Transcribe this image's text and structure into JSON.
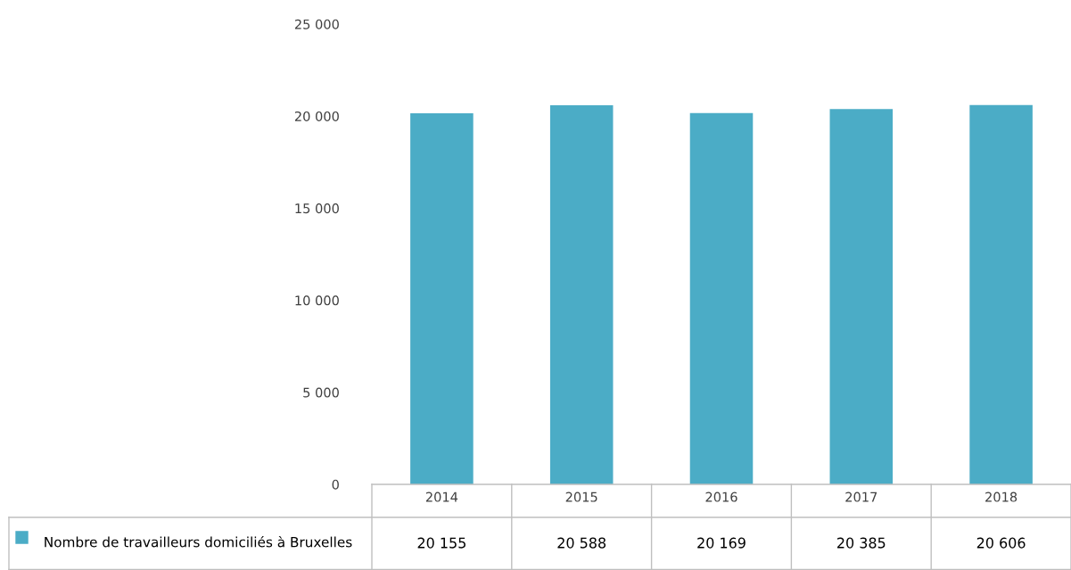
{
  "chart_data": {
    "type": "bar",
    "categories": [
      "2014",
      "2015",
      "2016",
      "2017",
      "2018"
    ],
    "series": [
      {
        "name": "Nombre de travailleurs domiciliés à Bruxelles",
        "color": "#4bacc6",
        "values": [
          20155,
          20588,
          20169,
          20385,
          20606
        ],
        "value_labels": [
          "20 155",
          "20 588",
          "20 169",
          "20 385",
          "20 606"
        ]
      }
    ],
    "ylim": [
      0,
      25000
    ],
    "yticks": [
      {
        "value": 0,
        "label": "0"
      },
      {
        "value": 5000,
        "label": "5 000"
      },
      {
        "value": 10000,
        "label": "10 000"
      },
      {
        "value": 15000,
        "label": "15 000"
      },
      {
        "value": 20000,
        "label": "20 000"
      },
      {
        "value": 25000,
        "label": "25 000"
      }
    ],
    "grid": false,
    "legend": "bottom"
  }
}
